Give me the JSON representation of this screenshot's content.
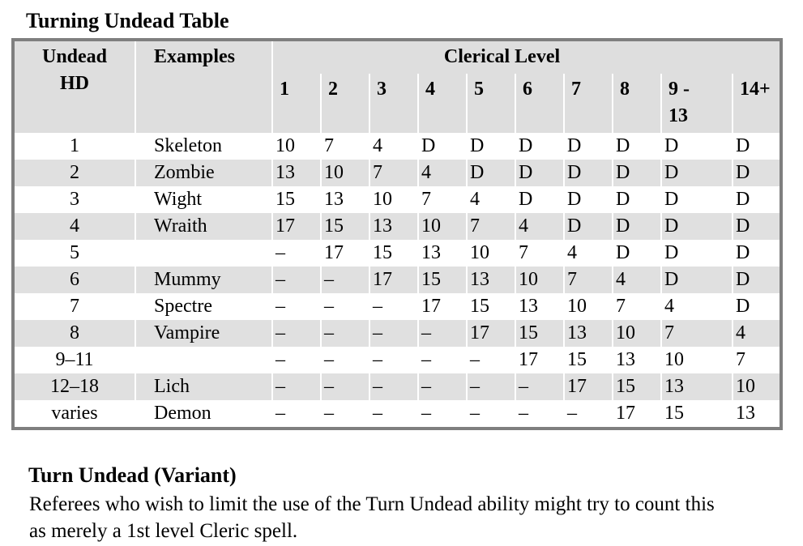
{
  "page": {
    "title": "Turning Undead Table",
    "variant_heading": "Turn Undead (Variant)",
    "variant_body": "Referees who wish to limit the use of the Turn Undead ability might try to count this as merely a 1st level Cleric spell."
  },
  "table": {
    "col_headers": {
      "undead_hd": "Undead\nHD",
      "examples": "Examples",
      "clerical_level": "Clerical Level",
      "levels": [
        "1",
        "2",
        "3",
        "4",
        "5",
        "6",
        "7",
        "8",
        "9 -\n13",
        "14+"
      ]
    },
    "rows": [
      {
        "hd": "1",
        "example": "Skeleton",
        "values": [
          "10",
          "7",
          "4",
          "D",
          "D",
          "D",
          "D",
          "D",
          "D",
          "D"
        ]
      },
      {
        "hd": "2",
        "example": "Zombie",
        "values": [
          "13",
          "10",
          "7",
          "4",
          "D",
          "D",
          "D",
          "D",
          "D",
          "D"
        ]
      },
      {
        "hd": "3",
        "example": "Wight",
        "values": [
          "15",
          "13",
          "10",
          "7",
          "4",
          "D",
          "D",
          "D",
          "D",
          "D"
        ]
      },
      {
        "hd": "4",
        "example": "Wraith",
        "values": [
          "17",
          "15",
          "13",
          "10",
          "7",
          "4",
          "D",
          "D",
          "D",
          "D"
        ]
      },
      {
        "hd": "5",
        "example": "",
        "values": [
          "–",
          "17",
          "15",
          "13",
          "10",
          "7",
          "4",
          "D",
          "D",
          "D"
        ]
      },
      {
        "hd": "6",
        "example": "Mummy",
        "values": [
          "–",
          "–",
          "17",
          "15",
          "13",
          "10",
          "7",
          "4",
          "D",
          "D"
        ]
      },
      {
        "hd": "7",
        "example": "Spectre",
        "values": [
          "–",
          "–",
          "–",
          "17",
          "15",
          "13",
          "10",
          "7",
          "4",
          "D"
        ]
      },
      {
        "hd": "8",
        "example": "Vampire",
        "values": [
          "–",
          "–",
          "–",
          "–",
          "17",
          "15",
          "13",
          "10",
          "7",
          "4"
        ]
      },
      {
        "hd": "9–11",
        "example": "",
        "values": [
          "–",
          "–",
          "–",
          "–",
          "–",
          "17",
          "15",
          "13",
          "10",
          "7"
        ]
      },
      {
        "hd": "12–18",
        "example": "Lich",
        "values": [
          "–",
          "–",
          "–",
          "–",
          "–",
          "–",
          "17",
          "15",
          "13",
          "10"
        ]
      },
      {
        "hd": "varies",
        "example": "Demon",
        "values": [
          "–",
          "–",
          "–",
          "–",
          "–",
          "–",
          "–",
          "17",
          "15",
          "13"
        ]
      }
    ]
  },
  "colors": {
    "table_border": "#7f7f7f",
    "header_background": "#dedede",
    "stripe_background": "#e0e0e0",
    "text": "#000000"
  }
}
